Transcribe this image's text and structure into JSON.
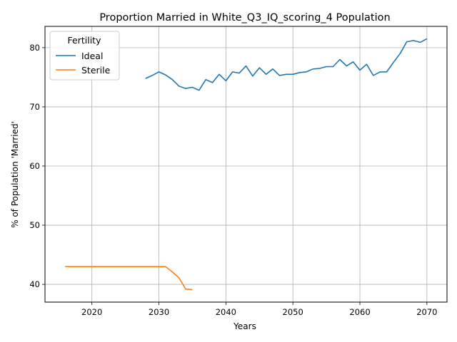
{
  "chart_data": {
    "type": "line",
    "title": "Proportion Married in White_Q3_IQ_scoring_4 Population",
    "xlabel": "Years",
    "ylabel": "% of Population 'Married'",
    "xlim": [
      2013,
      2073
    ],
    "ylim": [
      37,
      83.6
    ],
    "xticks": [
      2020,
      2030,
      2040,
      2050,
      2060,
      2070
    ],
    "yticks": [
      40,
      50,
      60,
      70,
      80
    ],
    "grid": true,
    "legend": {
      "title": "Fertility",
      "placement": "top-left"
    },
    "series": [
      {
        "name": "Ideal",
        "color": "#1f77b4",
        "x": [
          2028,
          2029,
          2030,
          2031,
          2032,
          2033,
          2034,
          2035,
          2036,
          2037,
          2038,
          2039,
          2040,
          2041,
          2042,
          2043,
          2044,
          2045,
          2046,
          2047,
          2048,
          2049,
          2050,
          2051,
          2052,
          2053,
          2054,
          2055,
          2056,
          2057,
          2058,
          2059,
          2060,
          2061,
          2062,
          2063,
          2064,
          2065,
          2066,
          2067,
          2068,
          2069,
          2070
        ],
        "values": [
          74.8,
          75.3,
          75.9,
          75.4,
          74.6,
          73.5,
          73.1,
          73.3,
          72.8,
          74.6,
          74.1,
          75.5,
          74.4,
          75.9,
          75.7,
          76.9,
          75.2,
          76.6,
          75.5,
          76.4,
          75.3,
          75.5,
          75.5,
          75.8,
          75.9,
          76.4,
          76.5,
          76.8,
          76.8,
          78.0,
          76.9,
          77.6,
          76.2,
          77.2,
          75.3,
          75.9,
          75.9,
          77.5,
          79.0,
          81.0,
          81.2,
          80.9,
          81.5
        ]
      },
      {
        "name": "Sterile",
        "color": "#ff7f0e",
        "x": [
          2016,
          2017,
          2018,
          2019,
          2020,
          2021,
          2022,
          2023,
          2024,
          2025,
          2026,
          2027,
          2028,
          2029,
          2030,
          2031,
          2032,
          2033,
          2034,
          2035
        ],
        "values": [
          43.0,
          43.0,
          43.0,
          43.0,
          43.0,
          43.0,
          43.0,
          43.0,
          43.0,
          43.0,
          43.0,
          43.0,
          43.0,
          43.0,
          43.0,
          43.0,
          42.1,
          41.1,
          39.2,
          39.1
        ]
      }
    ]
  }
}
